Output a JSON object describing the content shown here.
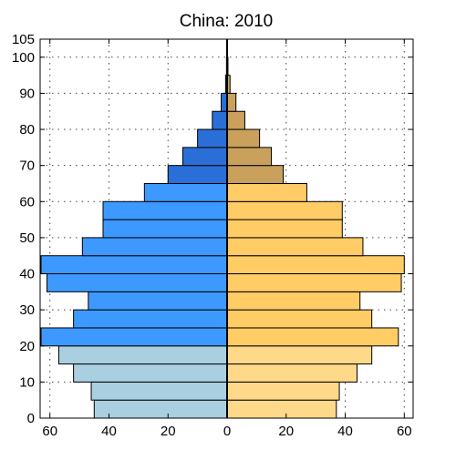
{
  "chart_data": {
    "type": "bar",
    "title": "China: 2010",
    "orientation": "horizontal-pyramid",
    "xlabel": "",
    "ylabel": "",
    "x_ticks": [
      "60",
      "40",
      "20",
      "0",
      "20",
      "40",
      "60"
    ],
    "y_ticks": [
      "0",
      "10",
      "20",
      "30",
      "40",
      "50",
      "60",
      "70",
      "80",
      "90",
      "100",
      "105"
    ],
    "xlim": [
      -63,
      63
    ],
    "ylim": [
      0,
      105
    ],
    "grid": true,
    "age_groups": [
      {
        "start": 0,
        "end": 5,
        "left": 45,
        "right": 37
      },
      {
        "start": 5,
        "end": 10,
        "left": 46,
        "right": 38
      },
      {
        "start": 10,
        "end": 15,
        "left": 52,
        "right": 44
      },
      {
        "start": 15,
        "end": 20,
        "left": 57,
        "right": 49
      },
      {
        "start": 20,
        "end": 25,
        "left": 63,
        "right": 58
      },
      {
        "start": 25,
        "end": 30,
        "left": 52,
        "right": 49
      },
      {
        "start": 30,
        "end": 35,
        "left": 47,
        "right": 45
      },
      {
        "start": 35,
        "end": 40,
        "left": 61,
        "right": 59
      },
      {
        "start": 40,
        "end": 45,
        "left": 63,
        "right": 60
      },
      {
        "start": 45,
        "end": 50,
        "left": 49,
        "right": 46
      },
      {
        "start": 50,
        "end": 55,
        "left": 42,
        "right": 39
      },
      {
        "start": 55,
        "end": 60,
        "left": 42,
        "right": 39
      },
      {
        "start": 60,
        "end": 65,
        "left": 28,
        "right": 27
      },
      {
        "start": 65,
        "end": 70,
        "left": 20,
        "right": 19
      },
      {
        "start": 70,
        "end": 75,
        "left": 15,
        "right": 15
      },
      {
        "start": 75,
        "end": 80,
        "left": 10,
        "right": 11
      },
      {
        "start": 80,
        "end": 85,
        "left": 5,
        "right": 6
      },
      {
        "start": 85,
        "end": 90,
        "left": 2,
        "right": 3
      },
      {
        "start": 90,
        "end": 95,
        "left": 0.5,
        "right": 1
      },
      {
        "start": 95,
        "end": 100,
        "left": 0.2,
        "right": 0.3
      }
    ],
    "colors": {
      "left_young": "#a9cfe0",
      "left_adult": "#3d99ff",
      "left_old": "#2a6fd8",
      "right_young": "#ffd98a",
      "right_adult": "#ffcc66",
      "right_old": "#c9a15c",
      "outline": "#000000",
      "grid": "#444444"
    }
  }
}
